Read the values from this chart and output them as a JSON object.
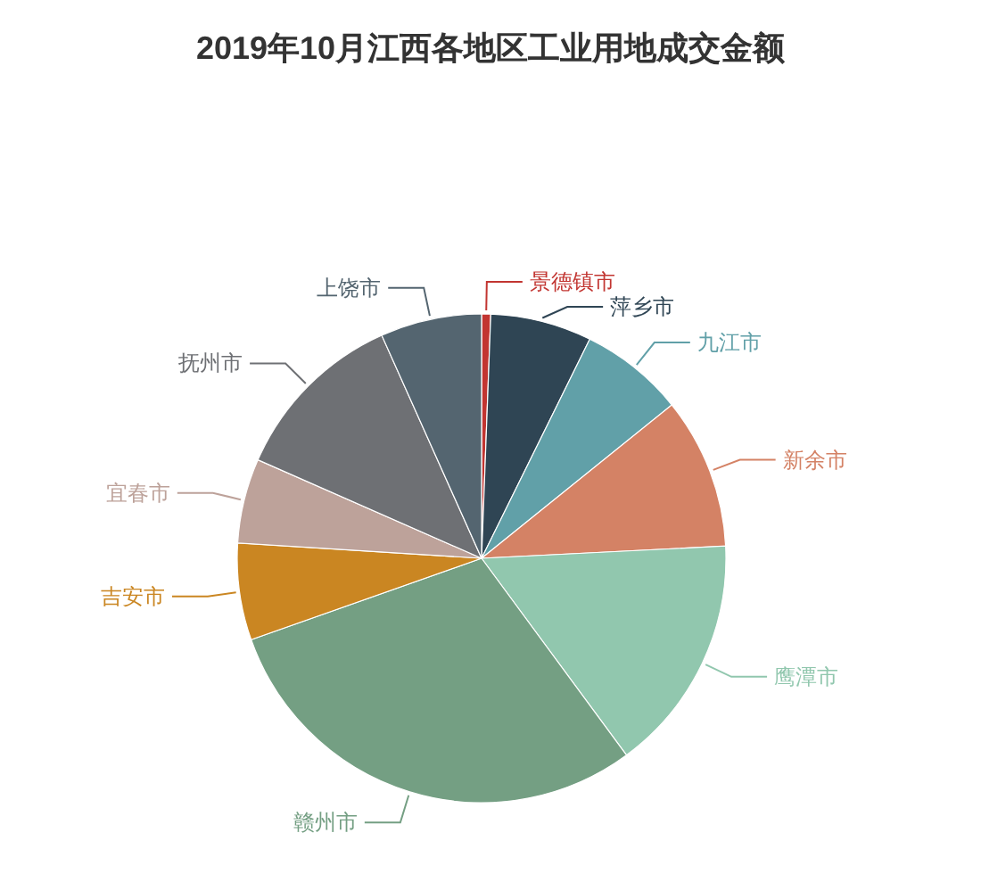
{
  "chart_data": {
    "type": "pie",
    "title": "2019年10月江西各地区工业用地成交金额",
    "categories": [
      "景德镇市",
      "萍乡市",
      "九江市",
      "新余市",
      "鹰潭市",
      "赣州市",
      "吉安市",
      "宜春市",
      "抚州市",
      "上饶市"
    ],
    "values": [
      0.6,
      6.7,
      6.9,
      10.0,
      15.7,
      29.7,
      6.4,
      5.6,
      11.7,
      6.7
    ],
    "colors": [
      "#c23531",
      "#2f4554",
      "#61a0a8",
      "#d48265",
      "#91c7ae",
      "#749f83",
      "#ca8622",
      "#bda29a",
      "#6e7074",
      "#546570"
    ],
    "legend": false
  }
}
